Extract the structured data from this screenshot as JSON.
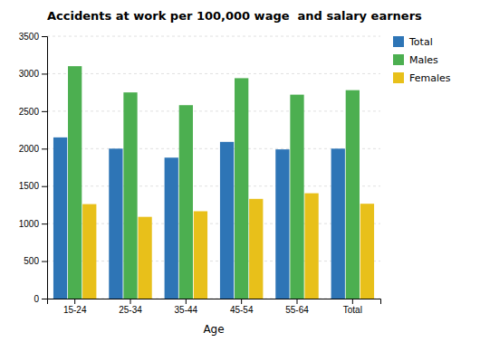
{
  "chart_data": {
    "type": "bar",
    "title": "Accidents at work per 100,000 wage  and salary earners",
    "xlabel": "Age",
    "categories": [
      "15-24",
      "25-34",
      "35-44",
      "45-54",
      "55-64",
      "Total"
    ],
    "series": [
      {
        "name": "Total",
        "color": "#2e75b6",
        "values": [
          2150,
          2000,
          1880,
          2090,
          1990,
          2000
        ]
      },
      {
        "name": "Males",
        "color": "#4caf50",
        "values": [
          3100,
          2750,
          2580,
          2940,
          2720,
          2780
        ]
      },
      {
        "name": "Females",
        "color": "#e8c01a",
        "values": [
          1260,
          1090,
          1165,
          1330,
          1405,
          1265
        ]
      }
    ],
    "ylim": [
      0,
      3500
    ],
    "yticks": [
      0,
      500,
      1000,
      1500,
      2000,
      2500,
      3000,
      3500
    ],
    "grid": true,
    "legend": "top-right"
  }
}
